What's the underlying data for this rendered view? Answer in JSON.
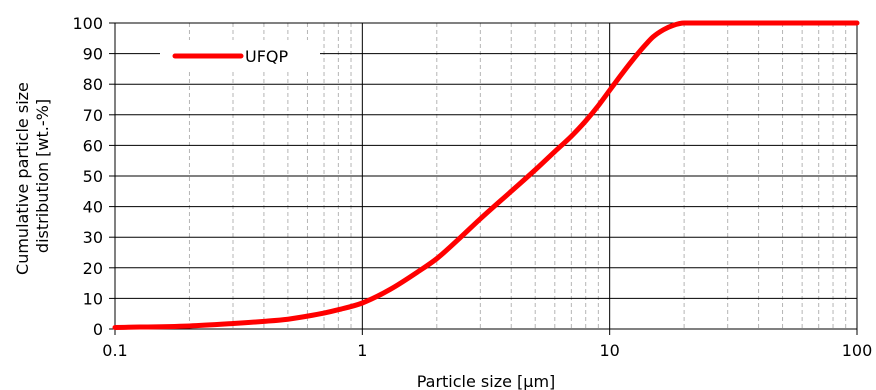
{
  "chart_data": {
    "type": "line",
    "x_scale": "log",
    "xlim": [
      0.1,
      100
    ],
    "ylim": [
      0,
      100
    ],
    "x_ticks": [
      {
        "value": 0.1,
        "label": "0.1"
      },
      {
        "value": 1,
        "label": "1"
      },
      {
        "value": 10,
        "label": "10"
      },
      {
        "value": 100,
        "label": "100"
      }
    ],
    "y_ticks": [
      {
        "value": 0,
        "label": "0"
      },
      {
        "value": 10,
        "label": "10"
      },
      {
        "value": 20,
        "label": "20"
      },
      {
        "value": 30,
        "label": "30"
      },
      {
        "value": 40,
        "label": "40"
      },
      {
        "value": 50,
        "label": "50"
      },
      {
        "value": 60,
        "label": "60"
      },
      {
        "value": 70,
        "label": "70"
      },
      {
        "value": 80,
        "label": "80"
      },
      {
        "value": 90,
        "label": "90"
      },
      {
        "value": 100,
        "label": "100"
      }
    ],
    "xlabel": "Particle size [µm]",
    "ylabel_lines": [
      "Cumulative particle size",
      "distribution [wt.-%]"
    ],
    "grid": true,
    "legend": "top-left",
    "series": [
      {
        "name": "UFQP",
        "color": "#ff0000",
        "points": [
          [
            0.1,
            0.5
          ],
          [
            0.2,
            1.0
          ],
          [
            0.3,
            1.8
          ],
          [
            0.4,
            2.5
          ],
          [
            0.5,
            3.2
          ],
          [
            0.6,
            4.2
          ],
          [
            0.7,
            5.2
          ],
          [
            0.8,
            6.3
          ],
          [
            1.0,
            8.5
          ],
          [
            1.3,
            13
          ],
          [
            1.7,
            19
          ],
          [
            2.0,
            23
          ],
          [
            2.5,
            30
          ],
          [
            3.0,
            36
          ],
          [
            4.0,
            45
          ],
          [
            5.0,
            52
          ],
          [
            6.0,
            58
          ],
          [
            7.0,
            63
          ],
          [
            8.0,
            68
          ],
          [
            9.0,
            73
          ],
          [
            10.0,
            78
          ],
          [
            11.0,
            82.5
          ],
          [
            12.0,
            86.5
          ],
          [
            13.0,
            90
          ],
          [
            14.0,
            93
          ],
          [
            15.0,
            95.5
          ],
          [
            16.5,
            97.8
          ],
          [
            18.0,
            99.2
          ],
          [
            20.0,
            100
          ],
          [
            30.0,
            100
          ],
          [
            100.0,
            100
          ]
        ]
      }
    ]
  }
}
